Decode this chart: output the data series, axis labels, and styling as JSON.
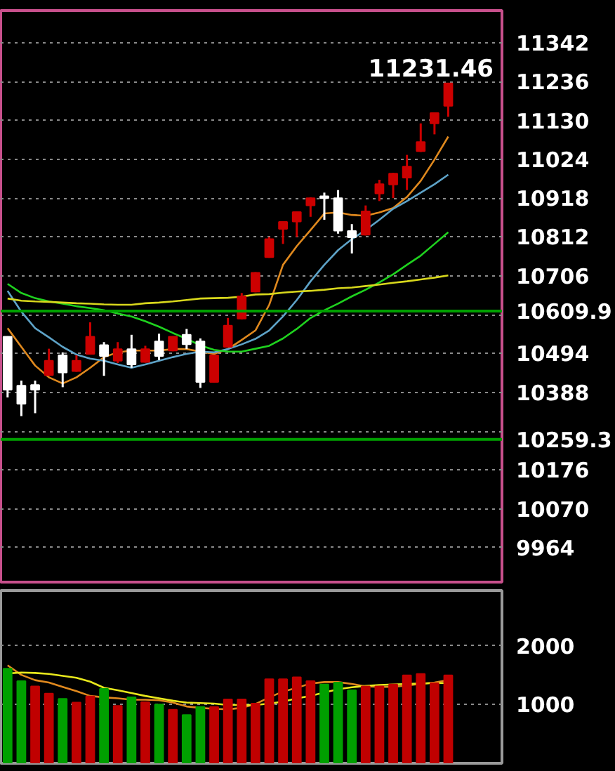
{
  "chart_data": [
    {
      "type": "candlestick",
      "categories": [
        null,
        null,
        null,
        null,
        null,
        null,
        null,
        null,
        null,
        null,
        null,
        null,
        null,
        null,
        null,
        null,
        null,
        null,
        null,
        null,
        null,
        null,
        null,
        null,
        null,
        null,
        null,
        null,
        null,
        null,
        null,
        null,
        null
      ],
      "ohlc": [
        [
          10540,
          10541,
          10374,
          10395
        ],
        [
          10406,
          10420,
          10323,
          10357
        ],
        [
          10408,
          10420,
          10331,
          10395
        ],
        [
          10435,
          10507,
          10433,
          10474
        ],
        [
          10489,
          10497,
          10402,
          10442
        ],
        [
          10446,
          10489,
          10444,
          10474
        ],
        [
          10493,
          10579,
          10491,
          10540
        ],
        [
          10517,
          10525,
          10433,
          10487
        ],
        [
          10474,
          10525,
          10468,
          10506
        ],
        [
          10506,
          10545,
          10455,
          10464
        ],
        [
          10471,
          10515,
          10469,
          10506
        ],
        [
          10527,
          10548,
          10476,
          10487
        ],
        [
          10502,
          10541,
          10500,
          10540
        ],
        [
          10545,
          10561,
          10506,
          10519
        ],
        [
          10527,
          10535,
          10400,
          10416
        ],
        [
          10416,
          10490,
          10414,
          10489
        ],
        [
          10512,
          10591,
          10510,
          10570
        ],
        [
          10589,
          10659,
          10587,
          10650
        ],
        [
          10663,
          10716,
          10661,
          10714
        ],
        [
          10757,
          10812,
          10755,
          10806
        ],
        [
          10834,
          10855,
          10793,
          10853
        ],
        [
          10854,
          10882,
          10812,
          10880
        ],
        [
          10898,
          10920,
          10867,
          10918
        ],
        [
          10923,
          10933,
          10859,
          10918
        ],
        [
          10918,
          10940,
          10821,
          10829
        ],
        [
          10828,
          10847,
          10767,
          10811
        ],
        [
          10818,
          10898,
          10816,
          10882
        ],
        [
          10931,
          10968,
          10910,
          10956
        ],
        [
          10955,
          10987,
          10918,
          10985
        ],
        [
          10974,
          11036,
          10940,
          11004
        ],
        [
          11046,
          11122,
          11044,
          11071
        ],
        [
          11122,
          11152,
          11092,
          11150
        ],
        [
          11170,
          11231.46,
          11140,
          11231
        ]
      ],
      "colors": [
        "#ffffff",
        "#ffffff",
        "#ffffff",
        "#cc0000",
        "#ffffff",
        "#cc0000",
        "#cc0000",
        "#ffffff",
        "#cc0000",
        "#ffffff",
        "#cc0000",
        "#ffffff",
        "#cc0000",
        "#ffffff",
        "#ffffff",
        "#cc0000",
        "#cc0000",
        "#cc0000",
        "#cc0000",
        "#cc0000",
        "#cc0000",
        "#cc0000",
        "#cc0000",
        "#ffffff",
        "#ffffff",
        "#ffffff",
        "#cc0000",
        "#cc0000",
        "#cc0000",
        "#cc0000",
        "#cc0000",
        "#cc0000",
        "#cc0000"
      ],
      "series": [
        {
          "type": "line",
          "color": "#e0891e",
          "values": [
            10563,
            10512,
            10461,
            10429,
            10412,
            10429,
            10455,
            10484,
            10497,
            10502,
            10502,
            10502,
            10506,
            10506,
            10499,
            10493,
            10506,
            10531,
            10557,
            10627,
            10736,
            10787,
            10831,
            10876,
            10879,
            10872,
            10870,
            10879,
            10891,
            10921,
            10965,
            11023,
            11086
          ]
        },
        {
          "type": "line",
          "color": "#5ea3c8",
          "values": [
            10665,
            10608,
            10563,
            10538,
            10512,
            10491,
            10480,
            10474,
            10464,
            10455,
            10464,
            10474,
            10484,
            10493,
            10499,
            10497,
            10506,
            10519,
            10534,
            10557,
            10595,
            10640,
            10691,
            10736,
            10776,
            10806,
            10831,
            10859,
            10889,
            10910,
            10933,
            10956,
            10982
          ]
        },
        {
          "type": "line",
          "color": "#1fd21f",
          "values": [
            10684,
            10659,
            10645,
            10636,
            10630,
            10623,
            10618,
            10612,
            10603,
            10595,
            10582,
            10567,
            10550,
            10534,
            10516,
            10504,
            10499,
            10499,
            10507,
            10515,
            10535,
            10561,
            10591,
            10612,
            10630,
            10650,
            10668,
            10688,
            10710,
            10736,
            10761,
            10793,
            10825
          ]
        },
        {
          "type": "line",
          "color": "#d8d81c",
          "values": [
            10644,
            10638,
            10636,
            10635,
            10633,
            10631,
            10630,
            10628,
            10627,
            10627,
            10631,
            10633,
            10636,
            10640,
            10644,
            10645,
            10646,
            10649,
            10655,
            10656,
            10660,
            10663,
            10665,
            10668,
            10672,
            10674,
            10678,
            10682,
            10687,
            10691,
            10696,
            10701,
            10707
          ]
        }
      ],
      "ylim": [
        9870,
        11430
      ],
      "yticks": [
        9964,
        10070,
        10176,
        {
          "value": 10282,
          "label": null
        },
        10388,
        10494,
        {
          "value": 10600,
          "label": null
        },
        10706,
        10812,
        10918,
        11024,
        11130,
        11236,
        11342
      ],
      "ref_lines": [
        {
          "axis": "y",
          "value": 10609.9,
          "label": "10609.9",
          "color": "#00a000"
        },
        {
          "axis": "y",
          "value": 10259.3,
          "label": "10259.3",
          "color": "#00a000"
        }
      ],
      "annotations": [
        "11231.46"
      ],
      "grid": "y",
      "tick_labels": "y"
    },
    {
      "type": "bar",
      "categories": [
        null,
        null,
        null,
        null,
        null,
        null,
        null,
        null,
        null,
        null,
        null,
        null,
        null,
        null,
        null,
        null,
        null,
        null,
        null,
        null,
        null,
        null,
        null,
        null,
        null,
        null,
        null,
        null,
        null,
        null,
        null,
        null,
        null
      ],
      "values": [
        1610,
        1398,
        1309,
        1187,
        1098,
        1033,
        1138,
        1268,
        976,
        1122,
        1041,
        1000,
        911,
        821,
        959,
        959,
        1089,
        1089,
        1016,
        1431,
        1431,
        1463,
        1398,
        1341,
        1374,
        1244,
        1309,
        1309,
        1341,
        1496,
        1520,
        1366,
        1496
      ],
      "colors": [
        "#00a000",
        "#00a000",
        "#c00000",
        "#c00000",
        "#00a000",
        "#c00000",
        "#c00000",
        "#00a000",
        "#c00000",
        "#00a000",
        "#c00000",
        "#00a000",
        "#c00000",
        "#00a000",
        "#00a000",
        "#c00000",
        "#c00000",
        "#c00000",
        "#c00000",
        "#c00000",
        "#c00000",
        "#c00000",
        "#c00000",
        "#00a000",
        "#00a000",
        "#00a000",
        "#c00000",
        "#c00000",
        "#c00000",
        "#c00000",
        "#c00000",
        "#c00000",
        "#c00000"
      ],
      "series": [
        {
          "type": "line",
          "color": "#e0891e",
          "values": [
            1667,
            1504,
            1415,
            1374,
            1301,
            1228,
            1146,
            1122,
            1106,
            1081,
            1081,
            1073,
            1033,
            967,
            943,
            927,
            919,
            943,
            1008,
            1122,
            1220,
            1285,
            1358,
            1382,
            1382,
            1350,
            1309,
            1301,
            1301,
            1325,
            1350,
            1374,
            1415
          ]
        },
        {
          "type": "line",
          "color": "#e8e81c",
          "values": [
            1528,
            1545,
            1537,
            1520,
            1488,
            1455,
            1390,
            1285,
            1244,
            1195,
            1146,
            1106,
            1065,
            1033,
            1024,
            1016,
            992,
            992,
            992,
            1016,
            1049,
            1106,
            1146,
            1203,
            1260,
            1293,
            1317,
            1333,
            1341,
            1350,
            1358,
            1366,
            1366
          ]
        }
      ],
      "ylim": [
        0,
        2940
      ],
      "yticks": [
        1000,
        2000
      ],
      "grid": "y",
      "tick_labels": "y"
    }
  ]
}
